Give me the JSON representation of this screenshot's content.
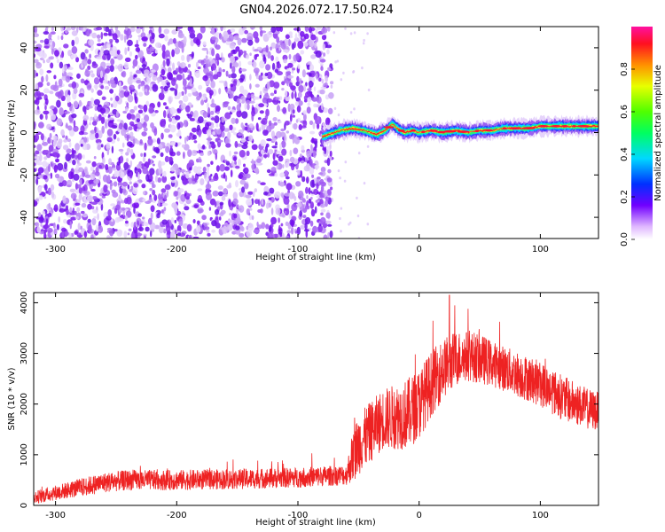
{
  "figure_title": "GN04.2026.072.17.50.R24",
  "colors": {
    "snr_line": "#ee2222",
    "axis": "#000000",
    "noise_dark": "#7711ee",
    "noise_light": "#cfa8f5"
  },
  "chart_data": [
    {
      "type": "heatmap",
      "title": "GN04.2026.072.17.50.R24",
      "xlabel": "Height of straight line (km)",
      "ylabel": "Frequency (Hz)",
      "xlim": [
        -318,
        148
      ],
      "ylim": [
        -50,
        50
      ],
      "x_ticks": [
        -300,
        -200,
        -100,
        0,
        100
      ],
      "y_ticks": [
        -40,
        -20,
        0,
        20,
        40
      ],
      "x_tick_labels": [
        "-300",
        "-200",
        "-100",
        "0",
        "100"
      ],
      "y_tick_labels": [
        "-40",
        "-20",
        "0",
        "20",
        "40"
      ],
      "noise_region_x": [
        -318,
        -72
      ],
      "signal_trace": {
        "x": [
          -80,
          -65,
          -55,
          -45,
          -35,
          -28,
          -22,
          -18,
          -12,
          -5,
          0,
          10,
          20,
          30,
          40,
          50,
          60,
          70,
          80,
          90,
          100,
          110,
          120,
          130,
          140,
          148
        ],
        "freq_hz": [
          -2,
          1,
          2,
          1,
          -1,
          1,
          4,
          2,
          0,
          1,
          0,
          1,
          0,
          1,
          0,
          1,
          1,
          2,
          2,
          2,
          3,
          3,
          3,
          3,
          3,
          3
        ]
      },
      "colorbar": {
        "label": "Normalized spectral amplitude",
        "range": [
          0.0,
          1.0
        ],
        "ticks": [
          0.0,
          0.2,
          0.4,
          0.6,
          0.8
        ],
        "tick_labels": [
          "0.0",
          "0.2",
          "0.4",
          "0.6",
          "0.8"
        ]
      }
    },
    {
      "type": "line",
      "xlabel": "Height of straight line (km)",
      "ylabel": "SNR (10 * v/v)",
      "xlim": [
        -318,
        148
      ],
      "ylim": [
        0,
        4200
      ],
      "x_ticks": [
        -300,
        -200,
        -100,
        0,
        100
      ],
      "y_ticks": [
        0,
        1000,
        2000,
        3000,
        4000
      ],
      "x_tick_labels": [
        "-300",
        "-200",
        "-100",
        "0",
        "100"
      ],
      "y_tick_labels": [
        "0",
        "1000",
        "2000",
        "3000",
        "4000"
      ],
      "series": [
        {
          "name": "SNR",
          "envelope_x": [
            -318,
            -300,
            -280,
            -260,
            -240,
            -200,
            -150,
            -100,
            -60,
            -55,
            -50,
            -40,
            -30,
            -20,
            -10,
            0,
            10,
            20,
            30,
            40,
            50,
            60,
            80,
            100,
            120,
            140,
            148
          ],
          "envelope_mean": [
            150,
            250,
            350,
            450,
            500,
            500,
            520,
            550,
            600,
            950,
            1200,
            1450,
            1700,
            1750,
            1800,
            2000,
            2400,
            2700,
            2900,
            2950,
            2900,
            2800,
            2600,
            2400,
            2100,
            1900,
            1850
          ],
          "envelope_spread": [
            130,
            150,
            180,
            200,
            200,
            200,
            200,
            200,
            200,
            500,
            600,
            600,
            600,
            650,
            700,
            700,
            650,
            600,
            550,
            500,
            500,
            450,
            450,
            450,
            450,
            400,
            400
          ],
          "peak_value": 4150,
          "peak_x": 25
        }
      ]
    }
  ]
}
